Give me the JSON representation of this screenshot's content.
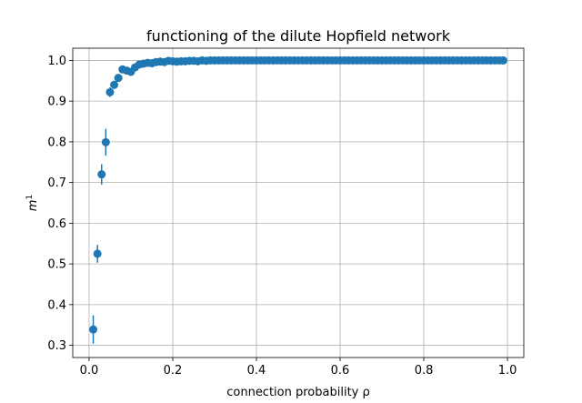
{
  "chart_data": {
    "type": "scatter",
    "title": "functioning of the dilute Hopfield network",
    "xlabel": "connection probability ρ",
    "ylabel": "m",
    "ylabel_superscript": "1",
    "xlim": [
      -0.039,
      1.039
    ],
    "ylim": [
      0.27,
      1.03
    ],
    "xticks": [
      0.0,
      0.2,
      0.4,
      0.6,
      0.8,
      1.0
    ],
    "xtick_labels": [
      "0.0",
      "0.2",
      "0.4",
      "0.6",
      "0.8",
      "1.0"
    ],
    "yticks": [
      0.3,
      0.4,
      0.5,
      0.6,
      0.7,
      0.8,
      0.9,
      1.0
    ],
    "ytick_labels": [
      "0.3",
      "0.4",
      "0.5",
      "0.6",
      "0.7",
      "0.8",
      "0.9",
      "1.0"
    ],
    "grid": true,
    "legend": "none",
    "marker_color": "#1f77b4",
    "series": [
      {
        "x": [
          0.01,
          0.02,
          0.03,
          0.04,
          0.05,
          0.06,
          0.07,
          0.08,
          0.09,
          0.1,
          0.11,
          0.12,
          0.13,
          0.14,
          0.15,
          0.16,
          0.17,
          0.18,
          0.19,
          0.2,
          0.21,
          0.22,
          0.23,
          0.24,
          0.25,
          0.26,
          0.27,
          0.28,
          0.29,
          0.3,
          0.31,
          0.32,
          0.33,
          0.34,
          0.35,
          0.36,
          0.37,
          0.38,
          0.39,
          0.4,
          0.41,
          0.42,
          0.43,
          0.44,
          0.45,
          0.46,
          0.47,
          0.48,
          0.49,
          0.5,
          0.51,
          0.52,
          0.53,
          0.54,
          0.55,
          0.56,
          0.57,
          0.58,
          0.59,
          0.6,
          0.61,
          0.62,
          0.63,
          0.64,
          0.65,
          0.66,
          0.67,
          0.68,
          0.69,
          0.7,
          0.71,
          0.72,
          0.73,
          0.74,
          0.75,
          0.76,
          0.77,
          0.78,
          0.79,
          0.8,
          0.81,
          0.82,
          0.83,
          0.84,
          0.85,
          0.86,
          0.87,
          0.88,
          0.89,
          0.9,
          0.91,
          0.92,
          0.93,
          0.94,
          0.95,
          0.96,
          0.97,
          0.98,
          0.99
        ],
        "y": [
          0.339,
          0.525,
          0.72,
          0.799,
          0.922,
          0.94,
          0.957,
          0.978,
          0.975,
          0.972,
          0.983,
          0.99,
          0.992,
          0.994,
          0.993,
          0.996,
          0.997,
          0.996,
          0.999,
          0.998,
          0.997,
          0.998,
          0.998,
          0.999,
          0.999,
          0.998,
          1.0,
          0.999,
          1.0,
          1.0,
          1.0,
          1.0,
          1.0,
          1.0,
          1.0,
          1.0,
          1.0,
          1.0,
          1.0,
          1.0,
          1.0,
          1.0,
          1.0,
          1.0,
          1.0,
          1.0,
          1.0,
          1.0,
          1.0,
          1.0,
          1.0,
          1.0,
          1.0,
          1.0,
          1.0,
          1.0,
          1.0,
          1.0,
          1.0,
          1.0,
          1.0,
          1.0,
          1.0,
          1.0,
          1.0,
          1.0,
          1.0,
          1.0,
          1.0,
          1.0,
          1.0,
          1.0,
          1.0,
          1.0,
          1.0,
          1.0,
          1.0,
          1.0,
          1.0,
          1.0,
          1.0,
          1.0,
          1.0,
          1.0,
          1.0,
          1.0,
          1.0,
          1.0,
          1.0,
          1.0,
          1.0,
          1.0,
          1.0,
          1.0,
          1.0,
          1.0,
          1.0,
          1.0,
          1.0
        ],
        "yerr": [
          0.035,
          0.022,
          0.025,
          0.033,
          0.012,
          0.01,
          0.008,
          0.008,
          0.006,
          0.006,
          0.005,
          0.004,
          0.003,
          0.003,
          0.003,
          0.002,
          0.002,
          0.002,
          0.001,
          0.001,
          0.002,
          0.001,
          0.001,
          0.001,
          0.001,
          0.001,
          0.0,
          0.001,
          0.0,
          0.0,
          0.0,
          0.0,
          0.0,
          0.0,
          0.0,
          0.0,
          0.0,
          0.0,
          0.0,
          0.0,
          0.0,
          0.0,
          0.0,
          0.0,
          0.0,
          0.0,
          0.0,
          0.0,
          0.0,
          0.0,
          0.0,
          0.0,
          0.0,
          0.0,
          0.0,
          0.0,
          0.0,
          0.0,
          0.0,
          0.0,
          0.0,
          0.0,
          0.0,
          0.0,
          0.0,
          0.0,
          0.0,
          0.0,
          0.0,
          0.0,
          0.0,
          0.0,
          0.0,
          0.0,
          0.0,
          0.0,
          0.0,
          0.0,
          0.0,
          0.0,
          0.0,
          0.0,
          0.0,
          0.0,
          0.0,
          0.0,
          0.0,
          0.0,
          0.0,
          0.0,
          0.0,
          0.0,
          0.0,
          0.0,
          0.0,
          0.0,
          0.0,
          0.0,
          0.0
        ]
      }
    ]
  }
}
